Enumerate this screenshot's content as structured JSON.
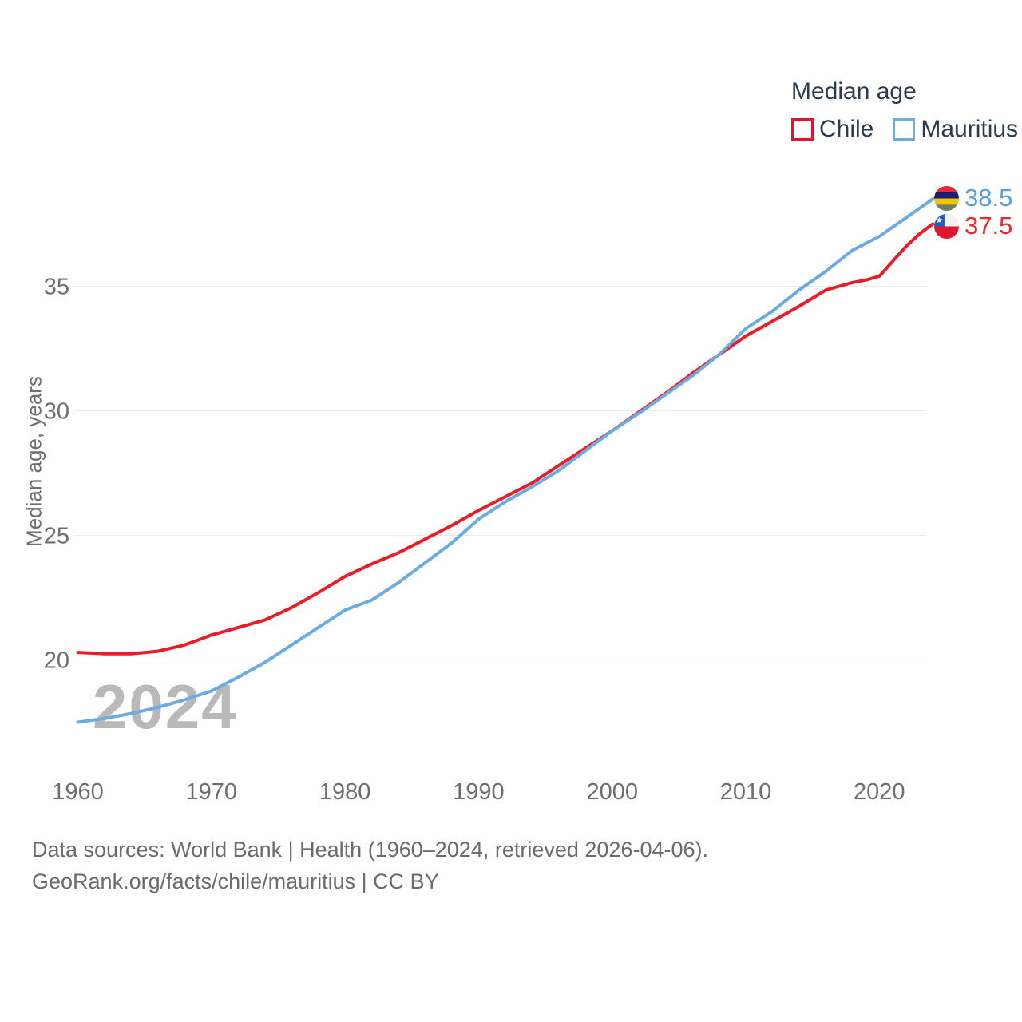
{
  "legend": {
    "title": "Median age",
    "items": [
      {
        "label": "Chile",
        "color": "#e8112d"
      },
      {
        "label": "Mauritius",
        "color": "#74a9d8"
      }
    ]
  },
  "end_labels": [
    {
      "series": "Mauritius",
      "value": "38.5",
      "color": "#5b9fd8",
      "icon": "mauritius-flag-icon"
    },
    {
      "series": "Chile",
      "value": "37.5",
      "color": "#e82a2a",
      "icon": "chile-flag-icon"
    }
  ],
  "watermark": "2024",
  "footer": {
    "line1": "Data sources: World Bank | Health (1960–2024, retrieved 2026-04-06).",
    "line2": "GeoRank.org/facts/chile/mauritius | CC BY"
  },
  "chart_data": {
    "type": "line",
    "title": "Median age",
    "ylabel": "Median age, years",
    "xlabel": "",
    "x_ticks": [
      1960,
      1970,
      1980,
      1990,
      2000,
      2010,
      2020
    ],
    "y_ticks": [
      20,
      25,
      30,
      35
    ],
    "xlim": [
      1960,
      2024
    ],
    "ylim": [
      17,
      39.5
    ],
    "grid": "horizontal",
    "legend_position": "top-right",
    "series": [
      {
        "name": "Chile",
        "color": "#ea1c28",
        "x": [
          1960,
          1962,
          1964,
          1966,
          1968,
          1970,
          1972,
          1974,
          1976,
          1978,
          1980,
          1982,
          1984,
          1986,
          1988,
          1990,
          1992,
          1994,
          1996,
          1998,
          2000,
          2002,
          2004,
          2006,
          2008,
          2010,
          2012,
          2014,
          2016,
          2017,
          2018,
          2019,
          2020,
          2021,
          2022,
          2023,
          2024
        ],
        "y": [
          20.3,
          20.25,
          20.25,
          20.35,
          20.6,
          21.0,
          21.3,
          21.6,
          22.1,
          22.7,
          23.35,
          23.85,
          24.3,
          24.85,
          25.4,
          26.0,
          26.55,
          27.1,
          27.8,
          28.5,
          29.2,
          29.95,
          30.7,
          31.5,
          32.25,
          33.0,
          33.6,
          34.2,
          34.85,
          35.0,
          35.15,
          35.25,
          35.4,
          36.0,
          36.6,
          37.1,
          37.5
        ]
      },
      {
        "name": "Mauritius",
        "color": "#6cabe1",
        "x": [
          1960,
          1962,
          1964,
          1966,
          1968,
          1970,
          1972,
          1974,
          1976,
          1978,
          1980,
          1982,
          1984,
          1986,
          1988,
          1990,
          1992,
          1994,
          1996,
          1998,
          2000,
          2002,
          2004,
          2006,
          2008,
          2010,
          2012,
          2014,
          2016,
          2018,
          2020,
          2022,
          2024
        ],
        "y": [
          17.5,
          17.65,
          17.85,
          18.1,
          18.4,
          18.75,
          19.3,
          19.9,
          20.6,
          21.3,
          22.0,
          22.4,
          23.1,
          23.9,
          24.7,
          25.65,
          26.35,
          26.95,
          27.6,
          28.4,
          29.2,
          29.9,
          30.65,
          31.4,
          32.25,
          33.3,
          34.0,
          34.85,
          35.6,
          36.45,
          37.0,
          37.75,
          38.5
        ]
      }
    ]
  }
}
